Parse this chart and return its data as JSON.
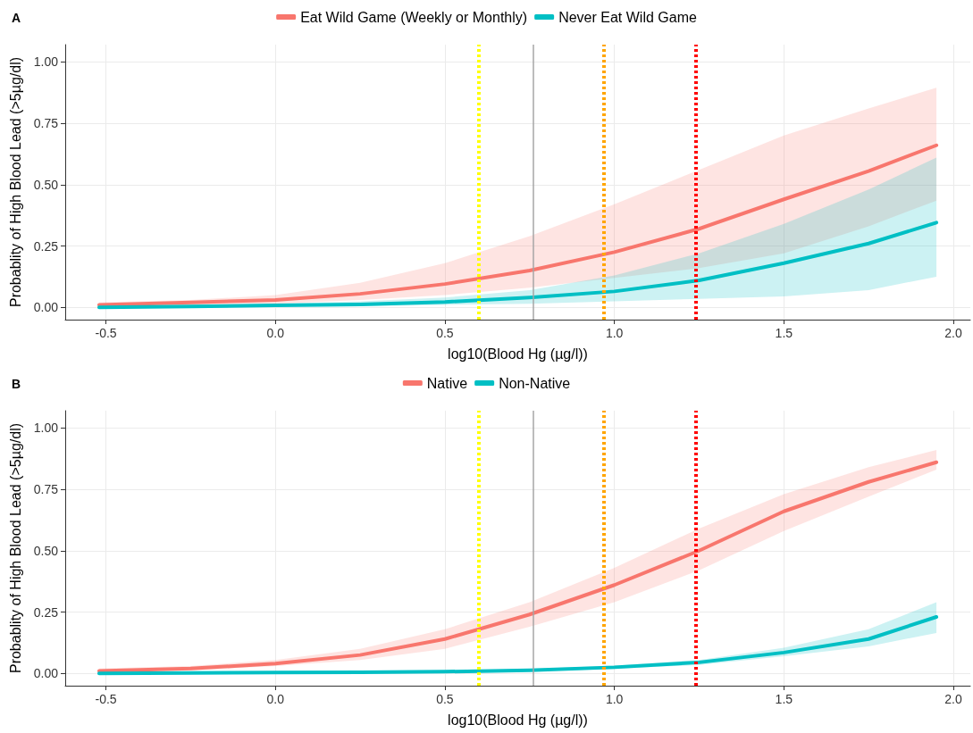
{
  "chart_data": [
    {
      "type": "line",
      "title": "A",
      "xlabel": "log10(Blood Hg (µg/l))",
      "ylabel": "Probablity of High Blood Lead (>5µg/dl)",
      "xlim": [
        -0.62,
        2.05
      ],
      "ylim": [
        -0.05,
        1.07
      ],
      "xticks": [
        {
          "value": -0.5,
          "label": "-0.5"
        },
        {
          "value": 0,
          "label": "0.0"
        },
        {
          "value": 0.5,
          "label": "0.5"
        },
        {
          "value": 1,
          "label": "1.0"
        },
        {
          "value": 1.5,
          "label": "1.5"
        },
        {
          "value": 2,
          "label": "2.0"
        }
      ],
      "yticks": [
        {
          "value": 0,
          "label": "0.00"
        },
        {
          "value": 0.25,
          "label": "0.25"
        },
        {
          "value": 0.5,
          "label": "0.50"
        },
        {
          "value": 0.75,
          "label": "0.75"
        },
        {
          "value": 1,
          "label": "1.00"
        }
      ],
      "grid": true,
      "legend": "top",
      "marker": "none",
      "line_style": "solid",
      "x": [
        -0.52,
        -0.25,
        0,
        0.25,
        0.5,
        0.75,
        1.0,
        1.25,
        1.5,
        1.75,
        1.95
      ],
      "series": [
        {
          "name": "Eat Wild Game (Weekly or Monthly)",
          "color": "#f8766d",
          "values": [
            0.01,
            0.02,
            0.03,
            0.055,
            0.095,
            0.15,
            0.225,
            0.32,
            0.44,
            0.555,
            0.66
          ],
          "lower": [
            0.003,
            0.008,
            0.015,
            0.03,
            0.05,
            0.08,
            0.12,
            0.16,
            0.22,
            0.33,
            0.435
          ],
          "upper": [
            0.02,
            0.03,
            0.05,
            0.1,
            0.18,
            0.29,
            0.42,
            0.56,
            0.7,
            0.81,
            0.895
          ]
        },
        {
          "name": "Never Eat Wild Game",
          "color": "#00bfc4",
          "values": [
            0,
            0.004,
            0.008,
            0.012,
            0.022,
            0.04,
            0.065,
            0.11,
            0.18,
            0.26,
            0.345
          ],
          "lower": [
            0,
            0.001,
            0.002,
            0.005,
            0.01,
            0.015,
            0.025,
            0.035,
            0.045,
            0.07,
            0.125
          ],
          "upper": [
            0.003,
            0.008,
            0.015,
            0.025,
            0.04,
            0.07,
            0.13,
            0.22,
            0.34,
            0.48,
            0.61
          ]
        }
      ],
      "ref_lines": [
        {
          "axis": "x",
          "value": 0.6,
          "color": "#ffff00",
          "line_style": "dotted"
        },
        {
          "axis": "x",
          "value": 0.76,
          "color": "#a6a6a6",
          "line_style": "solid"
        },
        {
          "axis": "x",
          "value": 0.97,
          "color": "#ffa500",
          "line_style": "dotted"
        },
        {
          "axis": "x",
          "value": 1.235,
          "color": "#ff0000",
          "line_style": "dotted"
        }
      ]
    },
    {
      "type": "line",
      "title": "B",
      "xlabel": "log10(Blood Hg (µg/l))",
      "ylabel": "Probablity of High Blood Lead (>5µg/dl)",
      "xlim": [
        -0.62,
        2.05
      ],
      "ylim": [
        -0.05,
        1.07
      ],
      "xticks": [
        {
          "value": -0.5,
          "label": "-0.5"
        },
        {
          "value": 0,
          "label": "0.0"
        },
        {
          "value": 0.5,
          "label": "0.5"
        },
        {
          "value": 1,
          "label": "1.0"
        },
        {
          "value": 1.5,
          "label": "1.5"
        },
        {
          "value": 2,
          "label": "2.0"
        }
      ],
      "yticks": [
        {
          "value": 0,
          "label": "0.00"
        },
        {
          "value": 0.25,
          "label": "0.25"
        },
        {
          "value": 0.5,
          "label": "0.50"
        },
        {
          "value": 0.75,
          "label": "0.75"
        },
        {
          "value": 1,
          "label": "1.00"
        }
      ],
      "grid": true,
      "legend": "top",
      "marker": "none",
      "line_style": "solid",
      "x": [
        -0.52,
        -0.25,
        0,
        0.25,
        0.5,
        0.75,
        1.0,
        1.25,
        1.5,
        1.75,
        1.95
      ],
      "series": [
        {
          "name": "Native",
          "color": "#f8766d",
          "values": [
            0.01,
            0.02,
            0.04,
            0.075,
            0.14,
            0.24,
            0.36,
            0.5,
            0.66,
            0.78,
            0.86
          ],
          "lower": [
            0.005,
            0.012,
            0.03,
            0.055,
            0.1,
            0.19,
            0.29,
            0.42,
            0.58,
            0.72,
            0.83
          ],
          "upper": [
            0.02,
            0.03,
            0.055,
            0.1,
            0.18,
            0.29,
            0.43,
            0.59,
            0.73,
            0.84,
            0.91
          ]
        },
        {
          "name": "Non-Native",
          "color": "#00bfc4",
          "values": [
            0,
            0.002,
            0.004,
            0.005,
            0.007,
            0.013,
            0.025,
            0.045,
            0.085,
            0.14,
            0.23
          ],
          "lower": [
            0,
            0.001,
            0.002,
            0.003,
            0.004,
            0.009,
            0.018,
            0.035,
            0.07,
            0.11,
            0.165
          ],
          "upper": [
            0.002,
            0.004,
            0.006,
            0.008,
            0.011,
            0.018,
            0.032,
            0.055,
            0.105,
            0.18,
            0.29
          ]
        }
      ],
      "ref_lines": [
        {
          "axis": "x",
          "value": 0.6,
          "color": "#ffff00",
          "line_style": "dotted"
        },
        {
          "axis": "x",
          "value": 0.76,
          "color": "#a6a6a6",
          "line_style": "solid"
        },
        {
          "axis": "x",
          "value": 0.97,
          "color": "#ffa500",
          "line_style": "dotted"
        },
        {
          "axis": "x",
          "value": 1.235,
          "color": "#ff0000",
          "line_style": "dotted"
        }
      ]
    }
  ]
}
